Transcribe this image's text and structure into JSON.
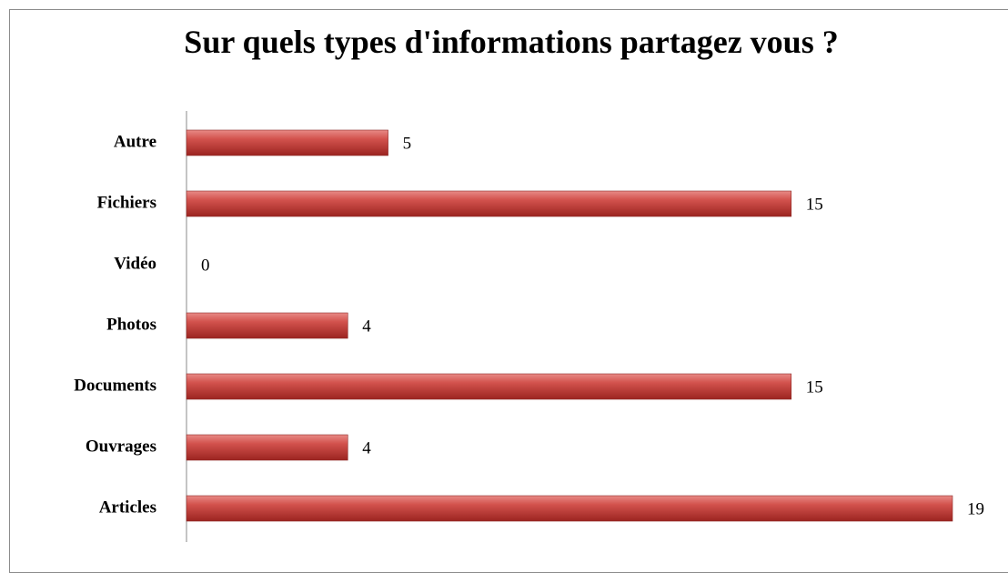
{
  "chart_data": {
    "type": "bar",
    "orientation": "horizontal",
    "title": "Sur quels types d'informations partagez vous ?",
    "categories": [
      "Autre",
      "Fichiers",
      "Vidéo",
      "Photos",
      "Documents",
      "Ouvrages",
      "Articles"
    ],
    "values": [
      5,
      15,
      0,
      4,
      15,
      4,
      19
    ],
    "color": "#c0504d"
  }
}
